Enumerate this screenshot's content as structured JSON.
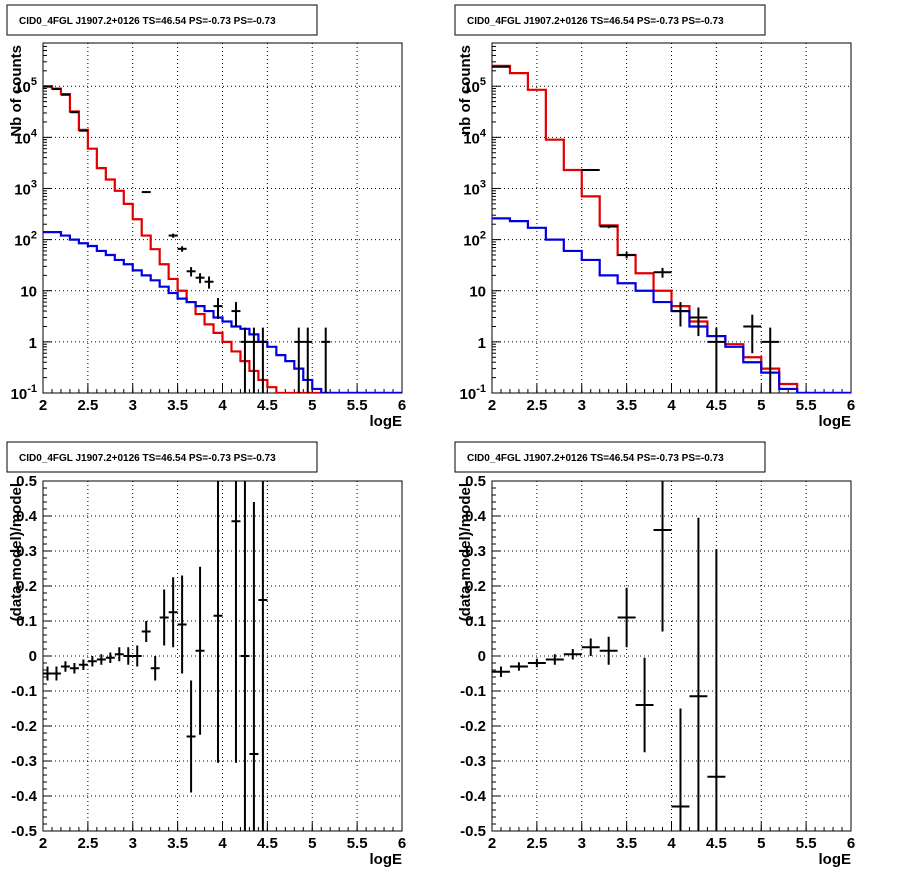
{
  "chart_data": [
    {
      "type": "line",
      "title": "CID0_4FGL J1907.2+0126 TS=46.54 PS=-0.73 PS=-0.73",
      "xlabel": "logE",
      "ylabel": "Nb of counts",
      "xlim": [
        2,
        6
      ],
      "ylim": [
        0.1,
        700000
      ],
      "yscale": "log",
      "grid": true,
      "xticks": [
        "2",
        "2.5",
        "3",
        "3.5",
        "4",
        "4.5",
        "5",
        "5.5",
        "6"
      ],
      "yticks": [
        "10^-1",
        "1",
        "10",
        "10^2",
        "10^3",
        "10^4",
        "10^5"
      ],
      "bin_edges": [
        2.0,
        2.1,
        2.2,
        2.3,
        2.4,
        2.5,
        2.6,
        2.7,
        2.8,
        2.9,
        3.0,
        3.1,
        3.2,
        3.3,
        3.4,
        3.5,
        3.6,
        3.7,
        3.8,
        3.9,
        4.0,
        4.1,
        4.2,
        4.3,
        4.4,
        4.5,
        4.6,
        4.7,
        4.8,
        4.9,
        5.0,
        5.1,
        5.2,
        5.3,
        5.4,
        5.5,
        5.6,
        5.7,
        5.8,
        5.9,
        6.0
      ],
      "series": [
        {
          "color": "#e00000",
          "style": "histogram",
          "values": [
            100000,
            90000,
            70000,
            32000,
            14000,
            6000,
            2500,
            1500,
            900,
            500,
            250,
            120,
            65,
            33,
            17,
            10,
            6,
            3.5,
            2.2,
            1.5,
            1.0,
            0.65,
            0.42,
            0.27,
            0.18,
            0.13,
            0.1,
            0.1,
            0.1,
            0.1,
            0.1,
            0.1,
            0.1,
            0.1,
            0.1,
            0.1,
            0.1,
            0.1,
            0.1,
            0.1
          ]
        },
        {
          "color": "#0000e0",
          "style": "histogram",
          "values": [
            140,
            140,
            120,
            100,
            85,
            75,
            60,
            50,
            40,
            33,
            25,
            20,
            16,
            12,
            9,
            7,
            6,
            5,
            4,
            3,
            2.5,
            2,
            1.8,
            1.4,
            1.0,
            0.8,
            0.55,
            0.42,
            0.3,
            0.18,
            0.12,
            0.1,
            0.1,
            0.1,
            0.1,
            0.1,
            0.1,
            0.1,
            0.1,
            0.1
          ]
        }
      ],
      "points": [
        {
          "x": 2.05,
          "y": 98000,
          "err": 400
        },
        {
          "x": 2.15,
          "y": 88000,
          "err": 350
        },
        {
          "x": 2.25,
          "y": 68000,
          "err": 300
        },
        {
          "x": 2.35,
          "y": 31000,
          "err": 200
        },
        {
          "x": 2.45,
          "y": 13500,
          "err": 120
        },
        {
          "x": 3.15,
          "y": 850,
          "err": 30
        },
        {
          "x": 3.45,
          "y": 120,
          "err": 11
        },
        {
          "x": 3.55,
          "y": 66,
          "err": 8
        },
        {
          "x": 3.65,
          "y": 24,
          "err": 5
        },
        {
          "x": 3.75,
          "y": 18,
          "err": 4
        },
        {
          "x": 3.85,
          "y": 15,
          "err": 4
        },
        {
          "x": 3.95,
          "y": 5,
          "err": 2.2
        },
        {
          "x": 4.15,
          "y": 4,
          "err": 2
        },
        {
          "x": 4.25,
          "y": 1,
          "err": 0.9
        },
        {
          "x": 4.35,
          "y": 1,
          "err": 0.9
        },
        {
          "x": 4.45,
          "y": 1,
          "err": 0.9
        },
        {
          "x": 4.85,
          "y": 1,
          "err": 0.9
        },
        {
          "x": 4.95,
          "y": 1,
          "err": 0.9
        },
        {
          "x": 5.15,
          "y": 1,
          "err": 0.9
        }
      ]
    },
    {
      "type": "line",
      "title": "CID0_4FGL J1907.2+0126 TS=46.54 PS=-0.73 PS=-0.73",
      "xlabel": "logE",
      "ylabel": "nb of counts",
      "xlim": [
        2,
        6
      ],
      "ylim": [
        0.1,
        700000
      ],
      "yscale": "log",
      "grid": true,
      "xticks": [
        "2",
        "2.5",
        "3",
        "3.5",
        "4",
        "4.5",
        "5",
        "5.5",
        "6"
      ],
      "yticks": [
        "10^-1",
        "1",
        "10",
        "10^2",
        "10^3",
        "10^4",
        "10^5"
      ],
      "bin_edges": [
        2.0,
        2.2,
        2.4,
        2.6,
        2.8,
        3.0,
        3.2,
        3.4,
        3.6,
        3.8,
        4.0,
        4.2,
        4.4,
        4.6,
        4.8,
        5.0,
        5.2,
        5.4,
        5.6,
        5.8,
        6.0
      ],
      "series": [
        {
          "color": "#e00000",
          "style": "histogram",
          "values": [
            250000,
            180000,
            85000,
            9000,
            2300,
            700,
            190,
            50,
            22,
            10,
            5,
            2.5,
            1.3,
            0.9,
            0.5,
            0.3,
            0.15,
            0.1,
            0.1,
            0.1
          ]
        },
        {
          "color": "#0000e0",
          "style": "histogram",
          "values": [
            260,
            230,
            170,
            100,
            60,
            40,
            20,
            14,
            10,
            6,
            4,
            2,
            1.3,
            0.8,
            0.4,
            0.25,
            0.12,
            0.1,
            0.1,
            0.1
          ]
        }
      ],
      "points": [
        {
          "x": 2.1,
          "y": 240000,
          "err": 500
        },
        {
          "x": 3.1,
          "y": 2300,
          "err": 48
        },
        {
          "x": 3.3,
          "y": 180,
          "err": 13
        },
        {
          "x": 3.5,
          "y": 50,
          "err": 7
        },
        {
          "x": 3.9,
          "y": 23,
          "err": 5
        },
        {
          "x": 4.1,
          "y": 4,
          "err": 2
        },
        {
          "x": 4.3,
          "y": 3,
          "err": 1.7
        },
        {
          "x": 4.5,
          "y": 1,
          "err": 0.9
        },
        {
          "x": 4.9,
          "y": 2,
          "err": 1.4
        },
        {
          "x": 5.1,
          "y": 1,
          "err": 0.9
        }
      ]
    },
    {
      "type": "scatter",
      "title": "CID0_4FGL J1907.2+0126 TS=46.54 PS=-0.73 PS=-0.73",
      "xlabel": "logE",
      "ylabel": "(data-model)/model",
      "xlim": [
        2,
        6
      ],
      "ylim": [
        -0.5,
        0.5
      ],
      "grid": true,
      "xticks": [
        "2",
        "2.5",
        "3",
        "3.5",
        "4",
        "4.5",
        "5",
        "5.5",
        "6"
      ],
      "yticks": [
        "-0.5",
        "-0.4",
        "-0.3",
        "-0.2",
        "-0.1",
        "0",
        "0.1",
        "0.2",
        "0.3",
        "0.4",
        "0.5"
      ],
      "xhalfwidth": 0.05,
      "points": [
        {
          "x": 2.05,
          "y": -0.05,
          "err": 0.02
        },
        {
          "x": 2.15,
          "y": -0.05,
          "err": 0.02
        },
        {
          "x": 2.25,
          "y": -0.03,
          "err": 0.015
        },
        {
          "x": 2.35,
          "y": -0.035,
          "err": 0.015
        },
        {
          "x": 2.45,
          "y": -0.025,
          "err": 0.015
        },
        {
          "x": 2.55,
          "y": -0.015,
          "err": 0.015
        },
        {
          "x": 2.65,
          "y": -0.01,
          "err": 0.015
        },
        {
          "x": 2.75,
          "y": -0.005,
          "err": 0.015
        },
        {
          "x": 2.85,
          "y": 0.005,
          "err": 0.02
        },
        {
          "x": 2.95,
          "y": 0.0,
          "err": 0.025
        },
        {
          "x": 3.05,
          "y": 0.0,
          "err": 0.03
        },
        {
          "x": 3.15,
          "y": 0.07,
          "err": 0.03
        },
        {
          "x": 3.25,
          "y": -0.035,
          "err": 0.035
        },
        {
          "x": 3.35,
          "y": 0.11,
          "err": 0.08
        },
        {
          "x": 3.45,
          "y": 0.125,
          "err": 0.1
        },
        {
          "x": 3.55,
          "y": 0.09,
          "err": 0.14
        },
        {
          "x": 3.65,
          "y": -0.23,
          "err": 0.16
        },
        {
          "x": 3.75,
          "y": 0.015,
          "err": 0.24
        },
        {
          "x": 3.95,
          "y": 0.115,
          "err": 0.42
        },
        {
          "x": 4.15,
          "y": 0.385,
          "err": 0.69
        },
        {
          "x": 4.25,
          "y": 0.0,
          "err": 1.0
        },
        {
          "x": 4.35,
          "y": -0.28,
          "err": 0.72
        },
        {
          "x": 4.45,
          "y": 0.16,
          "err": 1.0
        }
      ]
    },
    {
      "type": "scatter",
      "title": "CID0_4FGL J1907.2+0126 TS=46.54 PS=-0.73 PS=-0.73",
      "xlabel": "logE",
      "ylabel": "(data-model)/model",
      "xlim": [
        2,
        6
      ],
      "ylim": [
        -0.5,
        0.5
      ],
      "grid": true,
      "xticks": [
        "2",
        "2.5",
        "3",
        "3.5",
        "4",
        "4.5",
        "5",
        "5.5",
        "6"
      ],
      "yticks": [
        "-0.5",
        "-0.4",
        "-0.3",
        "-0.2",
        "-0.1",
        "0",
        "0.1",
        "0.2",
        "0.3",
        "0.4",
        "0.5"
      ],
      "xhalfwidth": 0.1,
      "points": [
        {
          "x": 2.1,
          "y": -0.045,
          "err": 0.015
        },
        {
          "x": 2.3,
          "y": -0.03,
          "err": 0.012
        },
        {
          "x": 2.5,
          "y": -0.02,
          "err": 0.012
        },
        {
          "x": 2.7,
          "y": -0.01,
          "err": 0.015
        },
        {
          "x": 2.9,
          "y": 0.005,
          "err": 0.015
        },
        {
          "x": 3.1,
          "y": 0.025,
          "err": 0.025
        },
        {
          "x": 3.3,
          "y": 0.015,
          "err": 0.04
        },
        {
          "x": 3.5,
          "y": 0.11,
          "err": 0.085
        },
        {
          "x": 3.7,
          "y": -0.14,
          "err": 0.135
        },
        {
          "x": 3.9,
          "y": 0.36,
          "err": 0.29
        },
        {
          "x": 4.1,
          "y": -0.43,
          "err": 0.28
        },
        {
          "x": 4.3,
          "y": -0.115,
          "err": 0.51
        },
        {
          "x": 4.5,
          "y": -0.345,
          "err": 0.65
        }
      ]
    }
  ]
}
